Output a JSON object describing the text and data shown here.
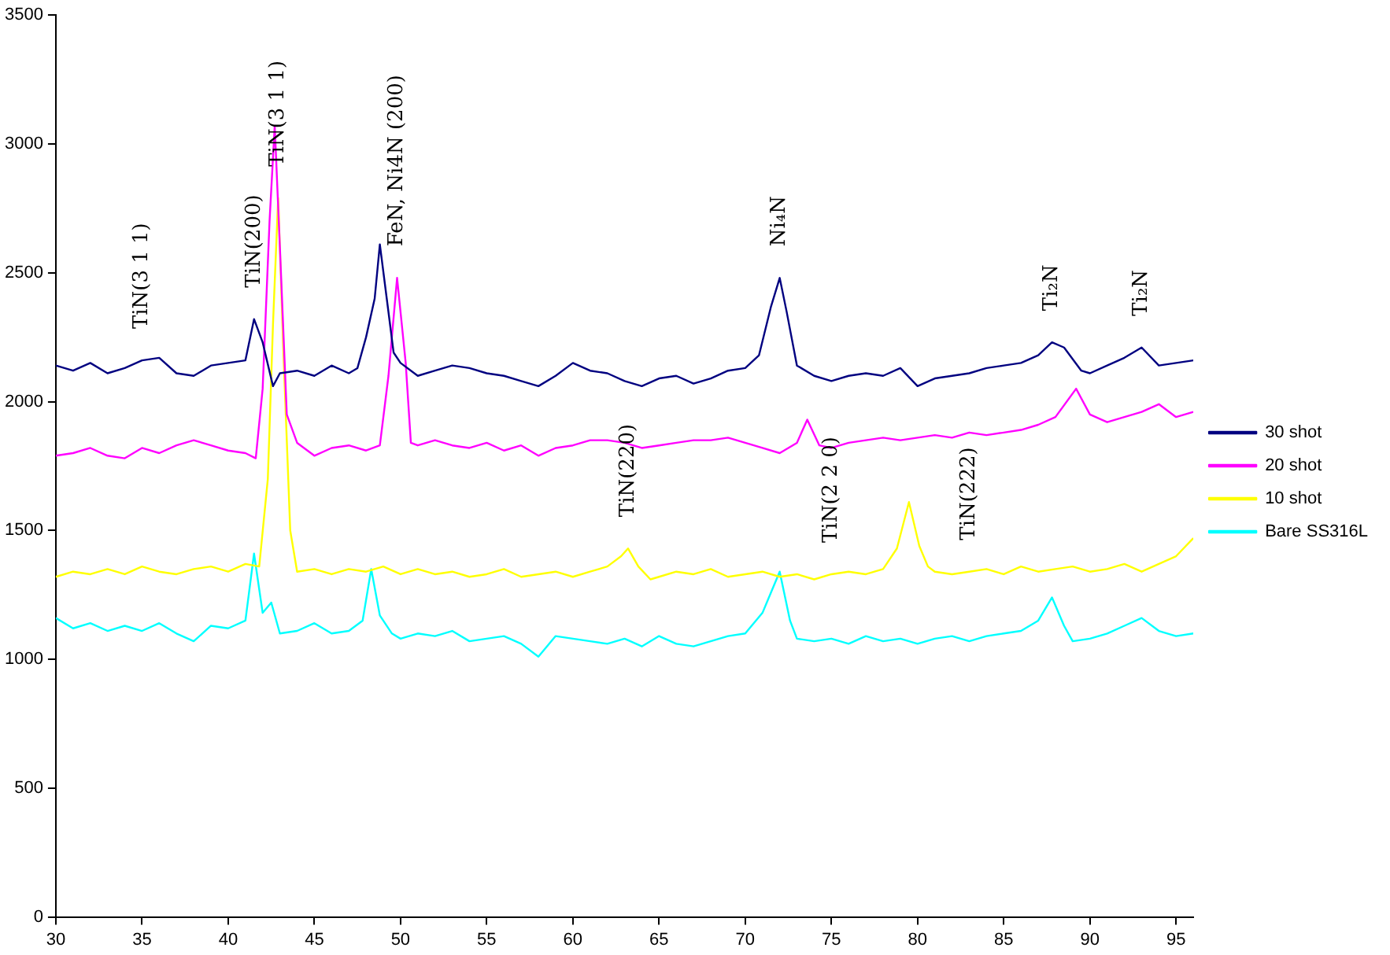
{
  "chart_data": {
    "type": "line",
    "xlim": [
      30,
      96
    ],
    "xticks": [
      30,
      35,
      40,
      45,
      50,
      55,
      60,
      65,
      70,
      75,
      80,
      85,
      90,
      95
    ],
    "ylim": [
      0,
      3500
    ],
    "yticks": [
      0,
      500,
      1000,
      1500,
      2000,
      2500,
      3000,
      3500
    ],
    "grid": false,
    "legend": "right",
    "marker": "none",
    "line_style": "solid",
    "series": [
      {
        "name": "30 shot",
        "color": "#000080",
        "x": [
          30,
          31,
          32,
          33,
          34,
          35,
          36,
          37,
          38,
          39,
          40,
          41,
          41.5,
          42,
          42.6,
          43,
          44,
          45,
          46,
          47,
          47.5,
          48,
          48.5,
          48.8,
          49.2,
          49.6,
          50,
          51,
          52,
          53,
          54,
          55,
          56,
          57,
          58,
          59,
          60,
          61,
          62,
          63,
          64,
          65,
          66,
          67,
          68,
          69,
          70,
          70.8,
          71.5,
          72,
          72.4,
          73,
          74,
          75,
          76,
          77,
          78,
          79,
          80,
          81,
          82,
          83,
          84,
          85,
          86,
          87,
          87.8,
          88.5,
          89.5,
          90,
          91,
          92,
          93,
          94,
          95,
          96
        ],
        "values": [
          2140,
          2120,
          2150,
          2110,
          2130,
          2160,
          2170,
          2110,
          2100,
          2140,
          2150,
          2160,
          2320,
          2230,
          2060,
          2110,
          2120,
          2100,
          2140,
          2110,
          2130,
          2250,
          2400,
          2610,
          2400,
          2190,
          2150,
          2100,
          2120,
          2140,
          2130,
          2110,
          2100,
          2080,
          2060,
          2100,
          2150,
          2120,
          2110,
          2080,
          2060,
          2090,
          2100,
          2070,
          2090,
          2120,
          2130,
          2180,
          2370,
          2480,
          2350,
          2140,
          2100,
          2080,
          2100,
          2110,
          2100,
          2130,
          2060,
          2090,
          2100,
          2110,
          2130,
          2140,
          2150,
          2180,
          2230,
          2210,
          2120,
          2110,
          2140,
          2170,
          2210,
          2140,
          2150,
          2160
        ]
      },
      {
        "name": "20 shot",
        "color": "#ff00ff",
        "x": [
          30,
          31,
          32,
          33,
          34,
          35,
          36,
          37,
          38,
          39,
          40,
          41,
          41.6,
          42,
          42.4,
          42.7,
          43,
          43.4,
          44,
          45,
          46,
          47,
          48,
          48.8,
          49.3,
          49.8,
          50.3,
          50.6,
          51,
          52,
          53,
          54,
          55,
          56,
          57,
          58,
          59,
          60,
          61,
          62,
          63,
          64,
          65,
          66,
          67,
          68,
          69,
          70,
          71,
          72,
          73,
          73.6,
          74.3,
          75,
          76,
          77,
          78,
          79,
          80,
          81,
          82,
          83,
          84,
          85,
          86,
          87,
          88,
          89.2,
          90,
          91,
          92,
          93,
          94,
          95,
          96
        ],
        "values": [
          1790,
          1800,
          1820,
          1790,
          1780,
          1820,
          1800,
          1830,
          1850,
          1830,
          1810,
          1800,
          1780,
          2050,
          2700,
          3070,
          2600,
          1950,
          1840,
          1790,
          1820,
          1830,
          1810,
          1830,
          2100,
          2480,
          2150,
          1840,
          1830,
          1850,
          1830,
          1820,
          1840,
          1810,
          1830,
          1790,
          1820,
          1830,
          1850,
          1850,
          1840,
          1820,
          1830,
          1840,
          1850,
          1850,
          1860,
          1840,
          1820,
          1800,
          1840,
          1930,
          1830,
          1820,
          1840,
          1850,
          1860,
          1850,
          1860,
          1870,
          1860,
          1880,
          1870,
          1880,
          1890,
          1910,
          1940,
          2050,
          1950,
          1920,
          1940,
          1960,
          1990,
          1940,
          1960
        ]
      },
      {
        "name": "10 shot",
        "color": "#ffff00",
        "x": [
          30,
          31,
          32,
          33,
          34,
          35,
          36,
          37,
          38,
          39,
          40,
          41,
          41.8,
          42.3,
          42.6,
          42.9,
          43.2,
          43.6,
          44,
          45,
          46,
          47,
          48,
          49,
          50,
          51,
          52,
          53,
          54,
          55,
          56,
          57,
          58,
          59,
          60,
          61,
          62,
          62.8,
          63.2,
          63.8,
          64.5,
          65,
          66,
          67,
          68,
          69,
          70,
          71,
          72,
          73,
          74,
          75,
          76,
          77,
          78,
          78.8,
          79.5,
          80.1,
          80.6,
          81,
          82,
          83,
          84,
          85,
          86,
          87,
          88,
          89,
          90,
          91,
          92,
          93,
          94,
          95,
          96
        ],
        "values": [
          1320,
          1340,
          1330,
          1350,
          1330,
          1360,
          1340,
          1330,
          1350,
          1360,
          1340,
          1370,
          1360,
          1700,
          2300,
          2790,
          2200,
          1500,
          1340,
          1350,
          1330,
          1350,
          1340,
          1360,
          1330,
          1350,
          1330,
          1340,
          1320,
          1330,
          1350,
          1320,
          1330,
          1340,
          1320,
          1340,
          1360,
          1400,
          1430,
          1360,
          1310,
          1320,
          1340,
          1330,
          1350,
          1320,
          1330,
          1340,
          1320,
          1330,
          1310,
          1330,
          1340,
          1330,
          1350,
          1430,
          1610,
          1440,
          1360,
          1340,
          1330,
          1340,
          1350,
          1330,
          1360,
          1340,
          1350,
          1360,
          1340,
          1350,
          1370,
          1340,
          1370,
          1400,
          1470
        ]
      },
      {
        "name": "Bare SS316L",
        "color": "#00ffff",
        "x": [
          30,
          31,
          32,
          33,
          34,
          35,
          36,
          37,
          38,
          39,
          40,
          41,
          41.5,
          42,
          42.5,
          43,
          44,
          45,
          46,
          47,
          47.8,
          48.3,
          48.8,
          49.5,
          50,
          51,
          52,
          53,
          54,
          55,
          56,
          57,
          58,
          59,
          60,
          61,
          62,
          63,
          64,
          65,
          66,
          67,
          68,
          69,
          70,
          71,
          72,
          72.6,
          73,
          74,
          75,
          76,
          77,
          78,
          79,
          80,
          81,
          82,
          83,
          84,
          85,
          86,
          87,
          87.8,
          88.5,
          89,
          90,
          91,
          92,
          93,
          94,
          95,
          96
        ],
        "values": [
          1160,
          1120,
          1140,
          1110,
          1130,
          1110,
          1140,
          1100,
          1070,
          1130,
          1120,
          1150,
          1410,
          1180,
          1220,
          1100,
          1110,
          1140,
          1100,
          1110,
          1150,
          1350,
          1170,
          1100,
          1080,
          1100,
          1090,
          1110,
          1070,
          1080,
          1090,
          1060,
          1010,
          1090,
          1080,
          1070,
          1060,
          1080,
          1050,
          1090,
          1060,
          1050,
          1070,
          1090,
          1100,
          1180,
          1340,
          1150,
          1080,
          1070,
          1080,
          1060,
          1090,
          1070,
          1080,
          1060,
          1080,
          1090,
          1070,
          1090,
          1100,
          1110,
          1150,
          1240,
          1130,
          1070,
          1080,
          1100,
          1130,
          1160,
          1110,
          1090,
          1100
        ]
      }
    ],
    "annotations": [
      {
        "text": "TiN(3 1 1)",
        "x": 35,
        "y": 2160
      },
      {
        "text": "TiN(200)",
        "x": 41.5,
        "y": 2320
      },
      {
        "text": "TiN(3 1 1)",
        "x": 42.9,
        "y": 2790
      },
      {
        "text": "FeN, Ni4N (200)",
        "x": 49.8,
        "y": 2480
      },
      {
        "text": "Ni₄N",
        "x": 72,
        "y": 2480
      },
      {
        "text": "TiN(220)",
        "x": 63.2,
        "y": 1430
      },
      {
        "text": "TiN(2 2 0)",
        "x": 75,
        "y": 1330
      },
      {
        "text": "TiN(222)",
        "x": 83,
        "y": 1340
      },
      {
        "text": "Ti₂N",
        "x": 87.8,
        "y": 2230
      },
      {
        "text": "Ti₂N",
        "x": 93,
        "y": 2210
      }
    ]
  }
}
